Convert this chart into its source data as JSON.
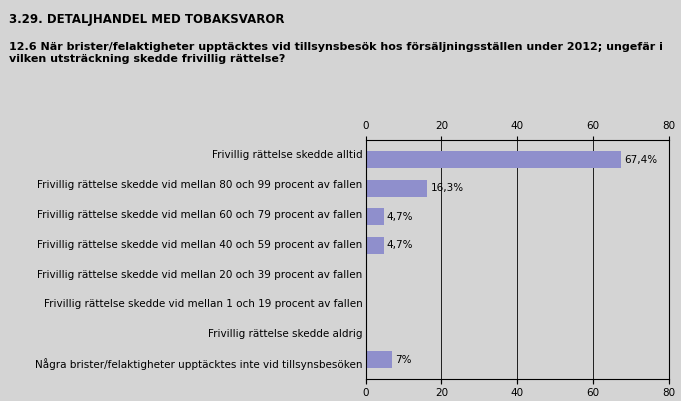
{
  "title": "3.29. DETALJHANDEL MED TOBAKSVAROR",
  "subtitle": "12.6 När brister/felaktigheter upptäcktes vid tillsynsbesök hos försäljningsställen under 2012; ungefär i\nvilken utsträckning skedde frivillig rättelse?",
  "categories": [
    "Frivillig rättelse skedde alltid",
    "Frivillig rättelse skedde vid mellan 80 och 99 procent av fallen",
    "Frivillig rättelse skedde vid mellan 60 och 79 procent av fallen",
    "Frivillig rättelse skedde vid mellan 40 och 59 procent av fallen",
    "Frivillig rättelse skedde vid mellan 20 och 39 procent av fallen",
    "Frivillig rättelse skedde vid mellan 1 och 19 procent av fallen",
    "Frivillig rättelse skedde aldrig",
    "Några brister/felaktigheter upptäcktes inte vid tillsynsbesöken"
  ],
  "values": [
    67.4,
    16.3,
    4.7,
    4.7,
    0.0,
    0.0,
    0.0,
    7.0
  ],
  "labels": [
    "67,4%",
    "16,3%",
    "4,7%",
    "4,7%",
    "",
    "",
    "",
    "7%"
  ],
  "bar_color": "#8f8fcc",
  "background_color": "#d4d4d4",
  "xlim": [
    0,
    80
  ],
  "xticks": [
    0,
    20,
    40,
    60,
    80
  ],
  "title_fontsize": 8.5,
  "subtitle_fontsize": 8.0,
  "label_fontsize": 7.5,
  "tick_fontsize": 7.5,
  "ylabel_fontsize": 7.5
}
